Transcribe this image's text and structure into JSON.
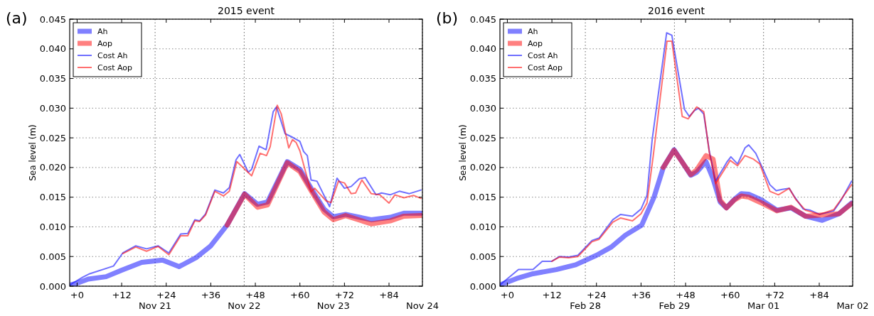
{
  "chart_data": [
    {
      "type": "line",
      "title": "2015 event",
      "ylabel": "Sea level (m)",
      "annotations": [
        "(a)"
      ],
      "xlim": [
        -2,
        93
      ],
      "ylim": [
        0,
        0.045
      ],
      "xticks": [
        {
          "value": 0,
          "label": "+0"
        },
        {
          "value": 12,
          "label": "+12"
        },
        {
          "value": 24,
          "label": "+24"
        },
        {
          "value": 36,
          "label": "+36"
        },
        {
          "value": 48,
          "label": "+48"
        },
        {
          "value": 60,
          "label": "+60"
        },
        {
          "value": 72,
          "label": "+72"
        },
        {
          "value": 84,
          "label": "+84"
        }
      ],
      "yticks": [
        {
          "value": 0,
          "label": "0.000"
        },
        {
          "value": 0.005,
          "label": "0.005"
        },
        {
          "value": 0.01,
          "label": "0.010"
        },
        {
          "value": 0.015,
          "label": "0.015"
        },
        {
          "value": 0.02,
          "label": "0.020"
        },
        {
          "value": 0.025,
          "label": "0.025"
        },
        {
          "value": 0.03,
          "label": "0.030"
        },
        {
          "value": 0.035,
          "label": "0.035"
        },
        {
          "value": 0.04,
          "label": "0.040"
        },
        {
          "value": 0.045,
          "label": "0.045"
        }
      ],
      "ref_lines": [
        {
          "axis": "x",
          "value": 21,
          "label": "Nov 21",
          "line_style": "dotted"
        },
        {
          "axis": "x",
          "value": 45,
          "label": "Nov 22",
          "line_style": "dotted"
        },
        {
          "axis": "x",
          "value": 69,
          "label": "Nov 23",
          "line_style": "dotted"
        },
        {
          "axis": "x",
          "value": 93,
          "label": "Nov 24",
          "line_style": "dotted"
        }
      ],
      "grid": "y",
      "legend": "top left",
      "line_style": "solid",
      "series": [
        {
          "name": "Ah",
          "color": "#8080ff",
          "x": [
            -2,
            0,
            3,
            7.8,
            12,
            17.4,
            20,
            23,
            27.5,
            32,
            36,
            40.4,
            45.1,
            48.6,
            51.3,
            56.6,
            60,
            63.3,
            66.5,
            69,
            72.3,
            79.2,
            84.3,
            88,
            92.6
          ],
          "values": [
            0.0002,
            0.0005,
            0.0012,
            0.0016,
            0.0027,
            0.004,
            0.0042,
            0.0044,
            0.0033,
            0.0048,
            0.0068,
            0.0103,
            0.0156,
            0.0138,
            0.0142,
            0.021,
            0.0197,
            0.0162,
            0.013,
            0.0117,
            0.0121,
            0.0112,
            0.0116,
            0.0123,
            0.0123
          ]
        },
        {
          "name": "Aop",
          "color": "#ff8080",
          "x": [
            40.4,
            45.1,
            48.6,
            51.3,
            56.6,
            60,
            63.3,
            66.5,
            69,
            72.3,
            79.2,
            84.3,
            88,
            92.6
          ],
          "values": [
            0.0103,
            0.0155,
            0.0133,
            0.0137,
            0.0208,
            0.0193,
            0.0158,
            0.0125,
            0.0112,
            0.0119,
            0.0105,
            0.011,
            0.0118,
            0.0119
          ]
        },
        {
          "name": "Cost Ah",
          "color": "#7070ff",
          "x": [
            -2,
            1.5,
            3.4,
            9.8,
            12.3,
            15.8,
            18.7,
            21.8,
            24.7,
            27.9,
            29.8,
            31.7,
            33,
            34.6,
            37.1,
            39.4,
            41,
            42.8,
            43.8,
            46.1,
            47,
            49,
            50.9,
            52.8,
            53.7,
            56,
            58,
            60,
            61,
            62,
            63,
            64.6,
            68,
            70,
            72,
            73.8,
            76,
            77.6,
            80.5,
            82,
            84.3,
            86.8,
            89.5,
            92.6
          ],
          "values": [
            0.0002,
            0.0015,
            0.0021,
            0.0034,
            0.0056,
            0.0068,
            0.0063,
            0.0068,
            0.0056,
            0.0088,
            0.0089,
            0.0112,
            0.011,
            0.0122,
            0.0162,
            0.0157,
            0.0166,
            0.0213,
            0.0222,
            0.0192,
            0.0197,
            0.0236,
            0.023,
            0.0294,
            0.0302,
            0.0257,
            0.0251,
            0.0244,
            0.0227,
            0.022,
            0.0179,
            0.0177,
            0.0134,
            0.0182,
            0.0165,
            0.0168,
            0.0181,
            0.0183,
            0.0154,
            0.0157,
            0.0154,
            0.016,
            0.0156,
            0.0162
          ]
        },
        {
          "name": "Cost Aop",
          "color": "#ff7070",
          "x": [
            12.3,
            15.8,
            18.7,
            21.8,
            24.7,
            27.9,
            29.8,
            31.7,
            33,
            34.6,
            37.1,
            39.4,
            41,
            43,
            47,
            49.3,
            51,
            52,
            53.9,
            55,
            57,
            58,
            59,
            60,
            63,
            64,
            67,
            68.4,
            70.4,
            72,
            73.8,
            75,
            76.7,
            79.2,
            81.5,
            84,
            85.6,
            88,
            90.6,
            92.6
          ],
          "values": [
            0.0055,
            0.0066,
            0.0059,
            0.0067,
            0.0053,
            0.0085,
            0.0085,
            0.011,
            0.0109,
            0.012,
            0.016,
            0.0152,
            0.016,
            0.021,
            0.0186,
            0.0224,
            0.022,
            0.0235,
            0.0305,
            0.029,
            0.0233,
            0.0247,
            0.0242,
            0.0228,
            0.0159,
            0.0165,
            0.0144,
            0.0141,
            0.0177,
            0.0174,
            0.0156,
            0.0157,
            0.0179,
            0.0156,
            0.0154,
            0.014,
            0.0154,
            0.0149,
            0.0153,
            0.0148
          ]
        }
      ]
    },
    {
      "type": "line",
      "title": "2016 event",
      "ylabel": "Sea level (m)",
      "annotations": [
        "(b)"
      ],
      "xlim": [
        -2,
        93
      ],
      "ylim": [
        0,
        0.045
      ],
      "xticks": [
        {
          "value": 0,
          "label": "+0"
        },
        {
          "value": 12,
          "label": "+12"
        },
        {
          "value": 24,
          "label": "+24"
        },
        {
          "value": 36,
          "label": "+36"
        },
        {
          "value": 48,
          "label": "+48"
        },
        {
          "value": 60,
          "label": "+60"
        },
        {
          "value": 72,
          "label": "+72"
        },
        {
          "value": 84,
          "label": "+84"
        }
      ],
      "yticks": [
        {
          "value": 0,
          "label": "0.000"
        },
        {
          "value": 0.005,
          "label": "0.005"
        },
        {
          "value": 0.01,
          "label": "0.010"
        },
        {
          "value": 0.015,
          "label": "0.015"
        },
        {
          "value": 0.02,
          "label": "0.020"
        },
        {
          "value": 0.025,
          "label": "0.025"
        },
        {
          "value": 0.03,
          "label": "0.030"
        },
        {
          "value": 0.035,
          "label": "0.035"
        },
        {
          "value": 0.04,
          "label": "0.040"
        },
        {
          "value": 0.045,
          "label": "0.045"
        }
      ],
      "ref_lines": [
        {
          "axis": "x",
          "value": 21,
          "label": "Feb 28",
          "line_style": "dotted"
        },
        {
          "axis": "x",
          "value": 45,
          "label": "Feb 29",
          "line_style": "dotted"
        },
        {
          "axis": "x",
          "value": 69,
          "label": "Mar 01",
          "line_style": "dotted"
        },
        {
          "axis": "x",
          "value": 93,
          "label": "Mar 02",
          "line_style": "dotted"
        }
      ],
      "grid": "y",
      "legend": "top left",
      "line_style": "solid",
      "series": [
        {
          "name": "Ah",
          "color": "#8080ff",
          "x": [
            -2,
            2.5,
            6.9,
            13.2,
            18.4,
            24,
            28,
            31.8,
            36.2,
            39.5,
            42,
            44.9,
            47.1,
            49.4,
            51,
            53.5,
            55.4,
            57.3,
            59,
            61.1,
            63,
            65,
            68.2,
            72.6,
            76.4,
            80.3,
            84.8,
            89.3,
            92.7
          ],
          "values": [
            0.0002,
            0.0013,
            0.0021,
            0.0028,
            0.0036,
            0.0052,
            0.0066,
            0.0086,
            0.0103,
            0.015,
            0.02,
            0.023,
            0.0209,
            0.0187,
            0.0192,
            0.021,
            0.0181,
            0.0142,
            0.0132,
            0.0146,
            0.0156,
            0.0155,
            0.0146,
            0.0128,
            0.0132,
            0.0118,
            0.0111,
            0.0122,
            0.014
          ]
        },
        {
          "name": "Aop",
          "color": "#ff8080",
          "x": [
            42,
            44.9,
            47.1,
            49.4,
            51,
            53.5,
            55.4,
            57.3,
            59,
            61.1,
            63,
            65,
            68.2,
            72.6,
            76.4,
            80.3,
            89.3,
            92.7
          ],
          "values": [
            0.02,
            0.0229,
            0.0209,
            0.0188,
            0.0196,
            0.022,
            0.0214,
            0.0145,
            0.0132,
            0.0145,
            0.0152,
            0.015,
            0.0141,
            0.0127,
            0.0133,
            0.0118,
            0.0122,
            0.0139
          ]
        },
        {
          "name": "Cost Ah",
          "color": "#7070ff",
          "x": [
            -2,
            3,
            6.9,
            9.4,
            12,
            14,
            16.5,
            19,
            22.8,
            24.7,
            28.4,
            30.5,
            33.7,
            36,
            37.6,
            39,
            42.9,
            44.3,
            47.7,
            49,
            50.4,
            51.5,
            52.9,
            54.4,
            56.1,
            59.2,
            60.2,
            62,
            64,
            65,
            66.9,
            68.8,
            70.7,
            72.4,
            74,
            75.9,
            77.4,
            79.7,
            81.6,
            84.1,
            87.9,
            89.8,
            92.7
          ],
          "values": [
            0.0002,
            0.0028,
            0.0028,
            0.0042,
            0.0042,
            0.005,
            0.0049,
            0.0052,
            0.0077,
            0.0081,
            0.0112,
            0.0121,
            0.0118,
            0.013,
            0.0153,
            0.0247,
            0.0427,
            0.0423,
            0.0298,
            0.0286,
            0.0296,
            0.03,
            0.029,
            0.0227,
            0.0177,
            0.021,
            0.0218,
            0.0206,
            0.0233,
            0.0238,
            0.0224,
            0.0198,
            0.0171,
            0.0161,
            0.0163,
            0.0165,
            0.015,
            0.013,
            0.0128,
            0.0121,
            0.0127,
            0.0144,
            0.0177
          ]
        },
        {
          "name": "Cost Aop",
          "color": "#ff7070",
          "x": [
            12,
            14,
            16.5,
            19,
            22.8,
            24.7,
            28.4,
            30.5,
            33.7,
            36,
            37.6,
            39.3,
            43,
            44.3,
            47.1,
            48.7,
            51,
            52.9,
            54.4,
            56.1,
            60,
            62,
            64,
            66.3,
            68,
            70.7,
            73,
            75.9,
            77.7,
            80.3,
            84.1,
            87.9,
            92.7
          ],
          "values": [
            0.0042,
            0.0049,
            0.0048,
            0.005,
            0.0075,
            0.0079,
            0.0108,
            0.0115,
            0.011,
            0.0122,
            0.014,
            0.022,
            0.0413,
            0.0413,
            0.0286,
            0.0282,
            0.0302,
            0.0294,
            0.0225,
            0.0173,
            0.0212,
            0.0203,
            0.022,
            0.0214,
            0.0206,
            0.016,
            0.0154,
            0.0165,
            0.0146,
            0.0128,
            0.0121,
            0.0129,
            0.0171
          ]
        }
      ]
    }
  ]
}
